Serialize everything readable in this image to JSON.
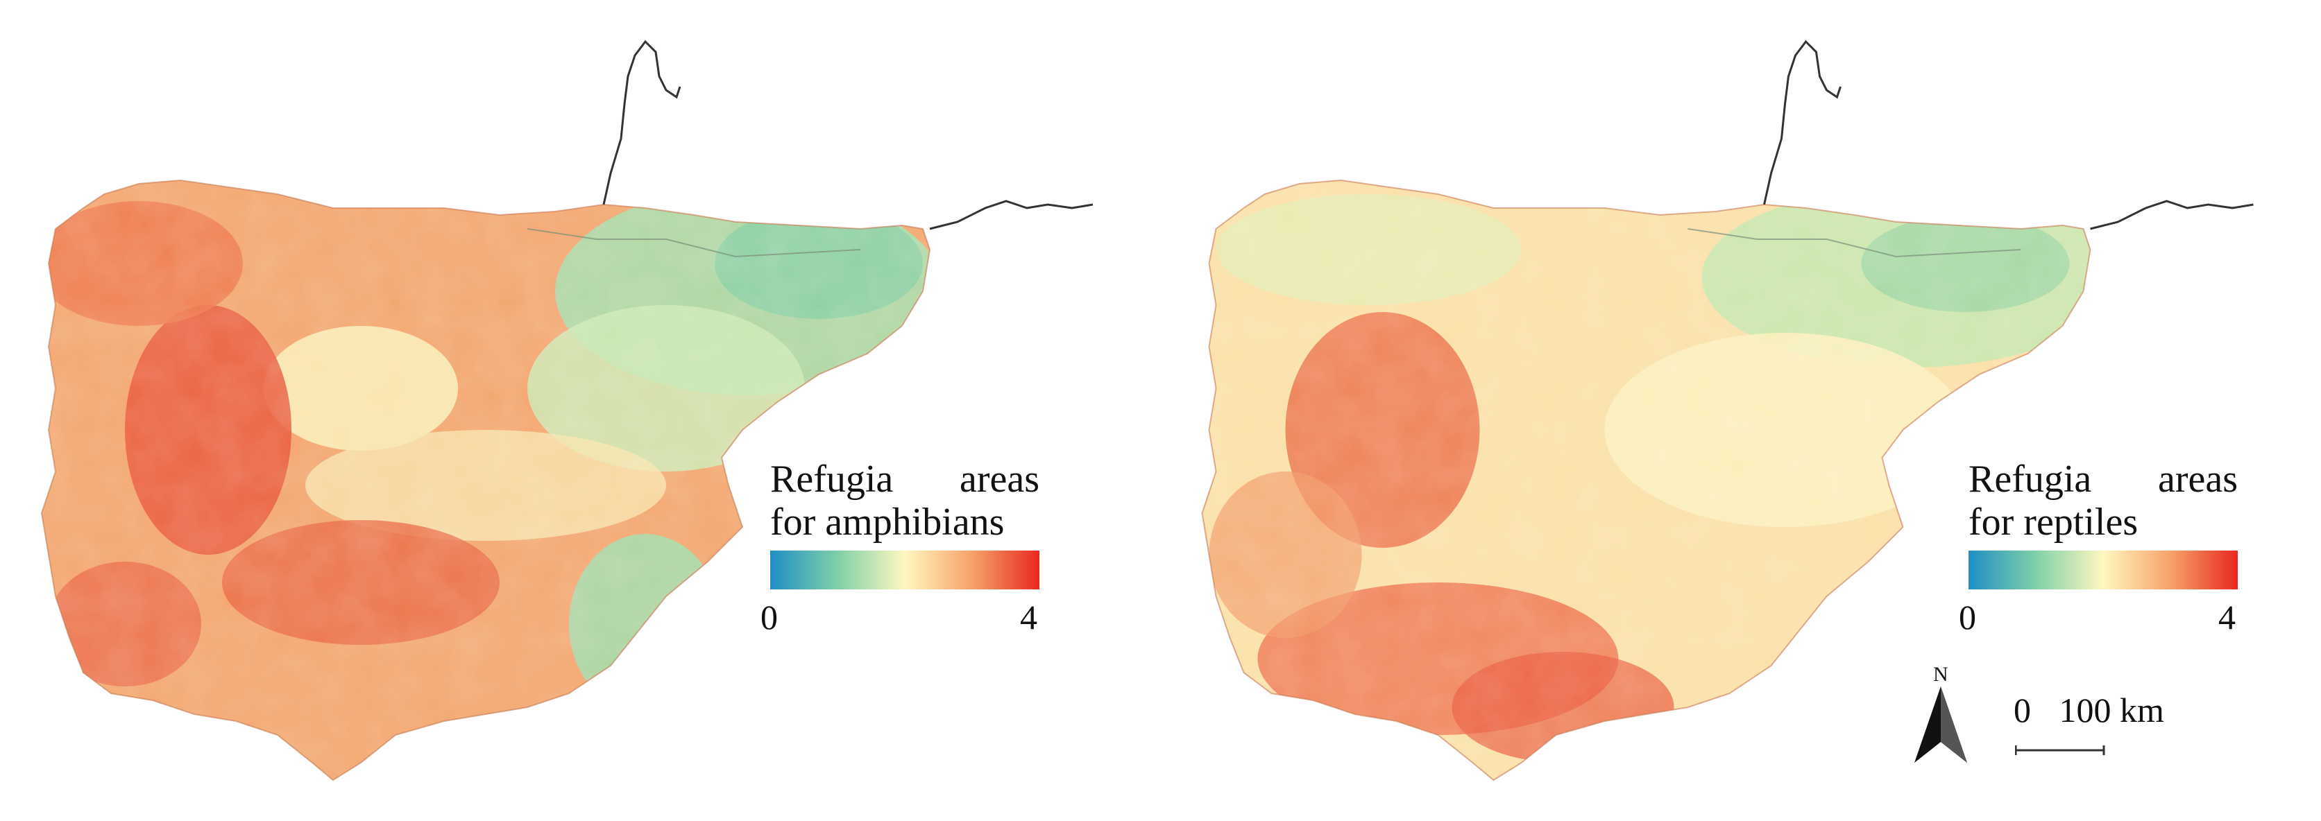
{
  "panels": [
    {
      "id": "amphibians",
      "legend": {
        "title_line1_word1": "Refugia",
        "title_line1_word2": "areas",
        "title_line2": "for amphibians",
        "min_label": "0",
        "max_label": "4"
      }
    },
    {
      "id": "reptiles",
      "legend": {
        "title_line1_word1": "Refugia",
        "title_line1_word2": "areas",
        "title_line2": "for reptiles",
        "min_label": "0",
        "max_label": "4"
      }
    }
  ],
  "north_arrow": {
    "label": "N"
  },
  "scale_bar": {
    "start_label": "0",
    "end_label": "100 km"
  },
  "colors": {
    "ramp_low": "#1f8fc4",
    "ramp_mid_low": "#7fd0a8",
    "ramp_mid": "#fff7c0",
    "ramp_mid_high": "#f6a36a",
    "ramp_high": "#e8281f",
    "border": "#333333"
  },
  "icons": {
    "north": "north-arrow-icon"
  }
}
